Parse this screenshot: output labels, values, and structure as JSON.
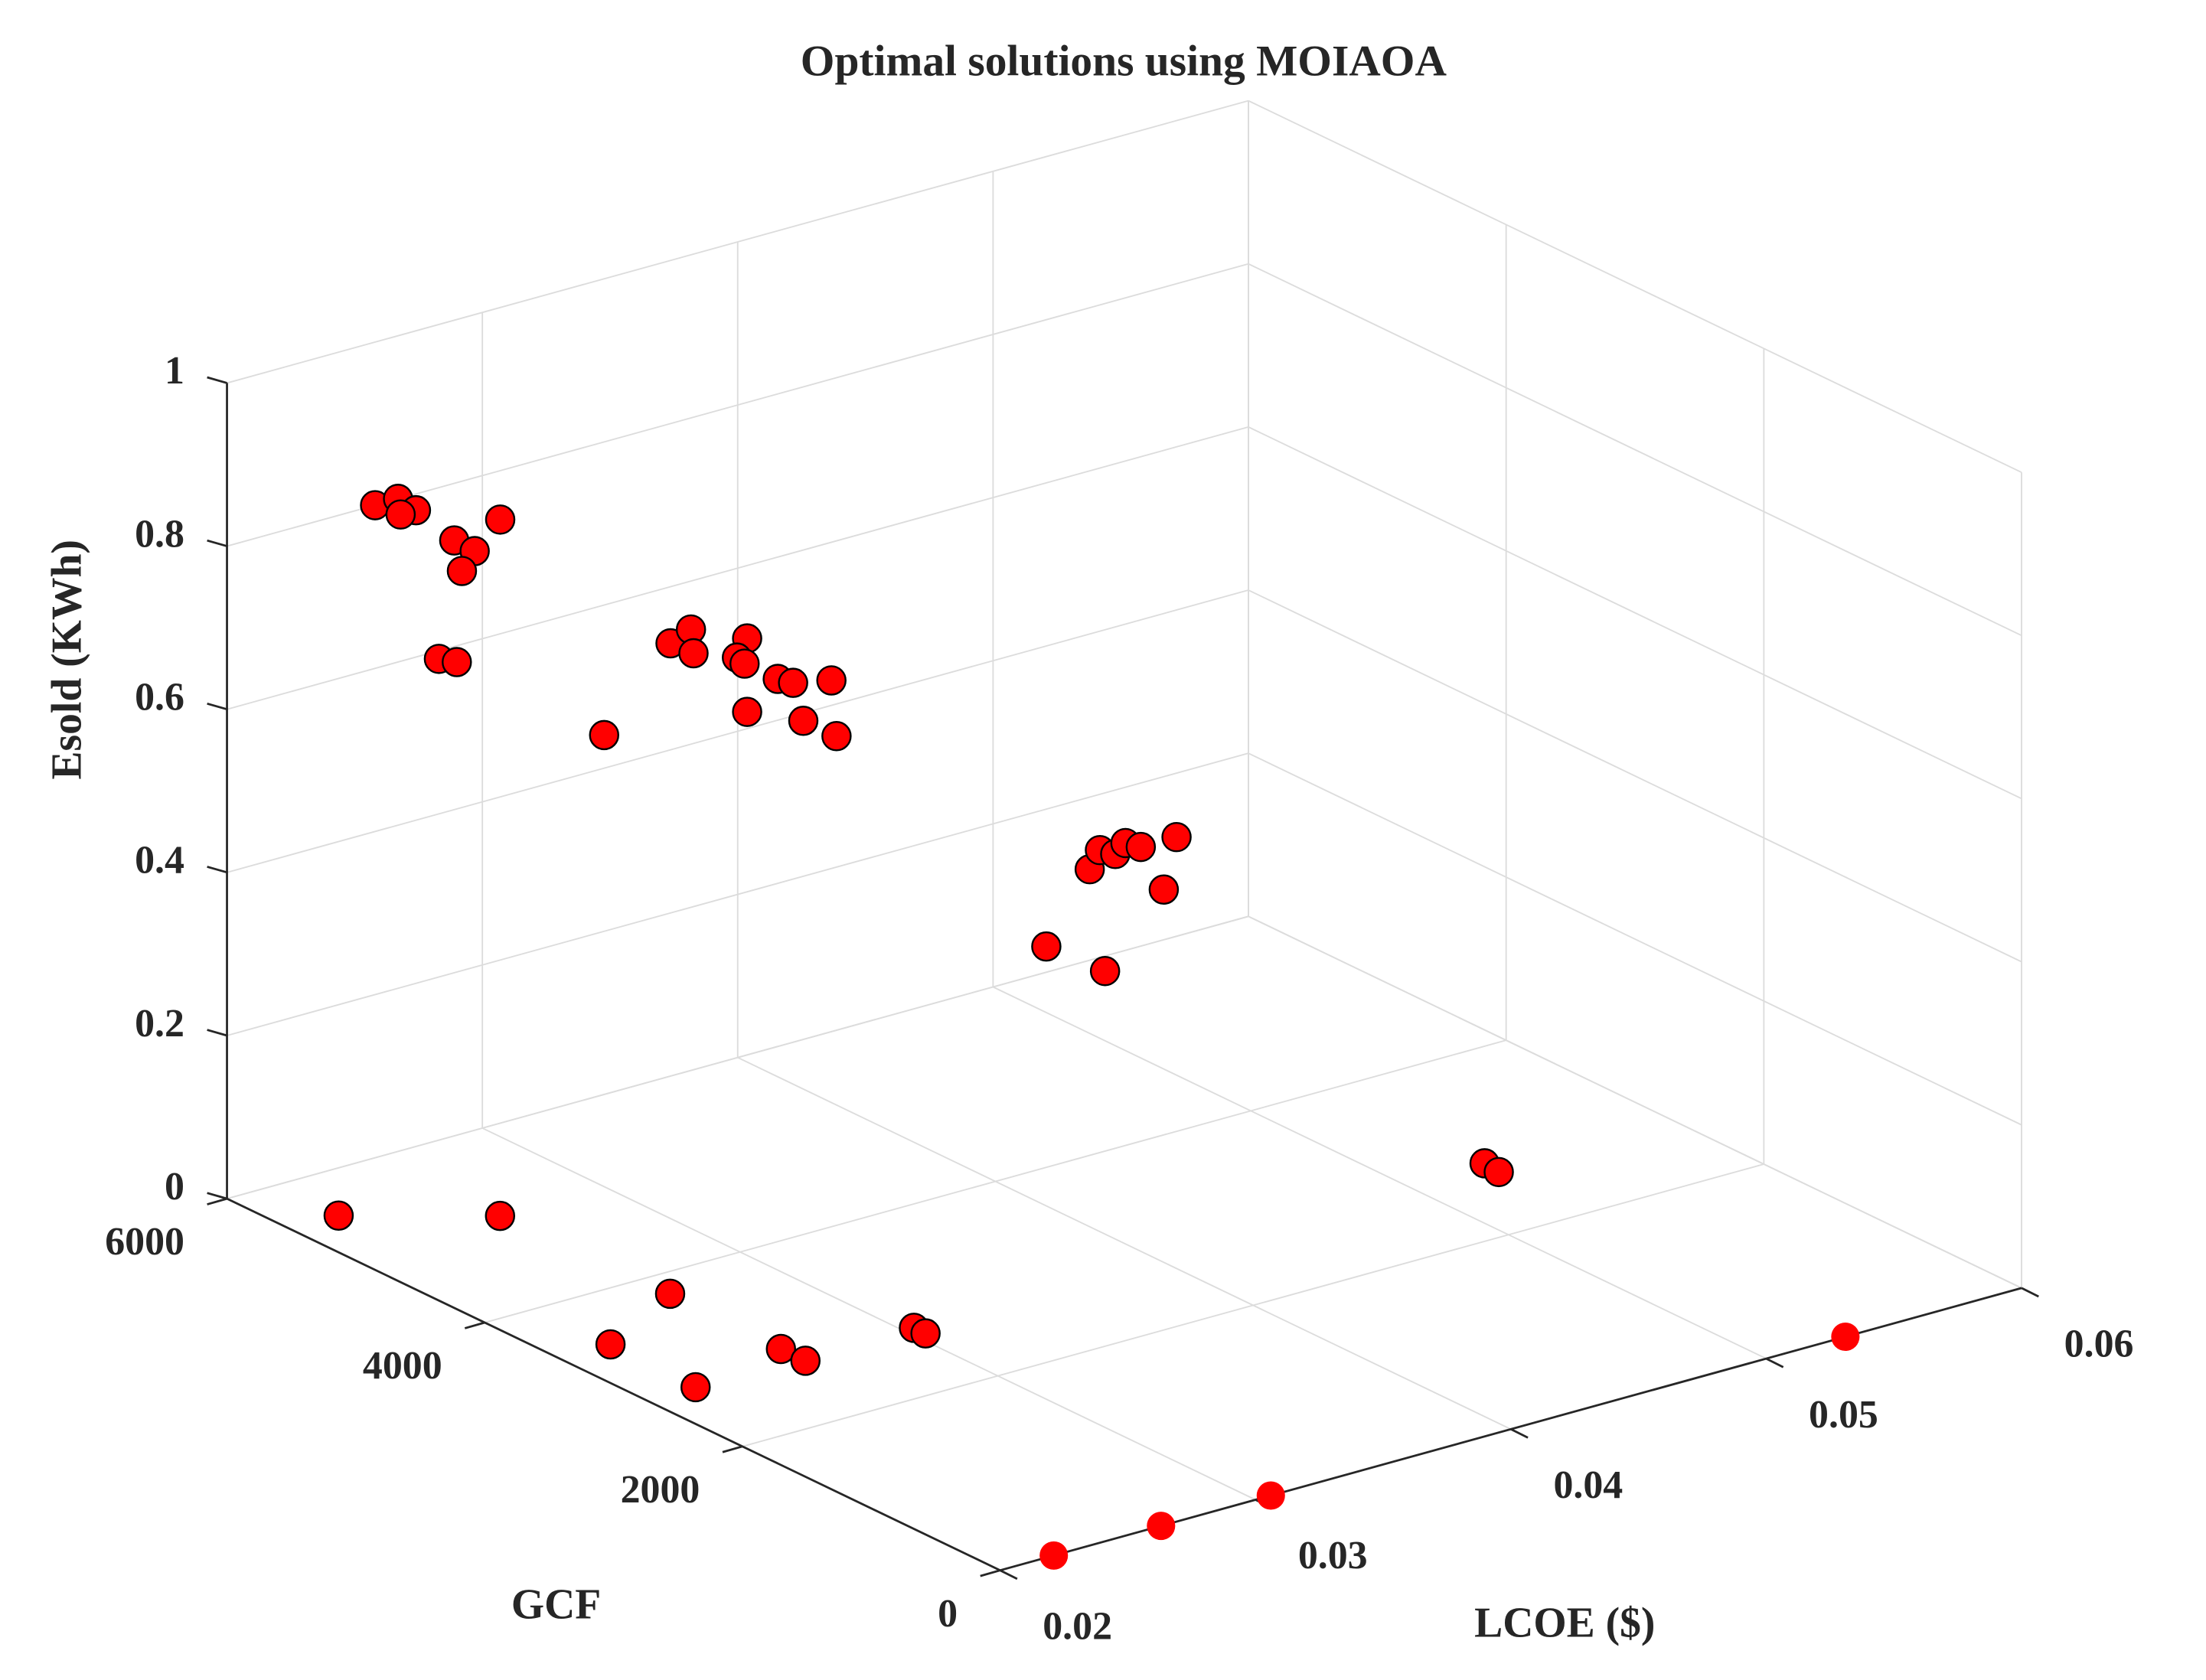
{
  "chart_data": {
    "type": "scatter3d",
    "title": "Optimal solutions using MOIAOA",
    "xlabel": "LCOE ($)",
    "ylabel": "GCF",
    "zlabel": "Esold (KWh)",
    "xlim": [
      0.02,
      0.06
    ],
    "xticks": [
      0.02,
      0.03,
      0.04,
      0.05,
      0.06
    ],
    "ylim": [
      0,
      6000
    ],
    "yticks": [
      0,
      2000,
      4000,
      6000
    ],
    "zlim": [
      0,
      1
    ],
    "zticks": [
      0,
      0.2,
      0.4,
      0.6,
      0.8,
      1
    ],
    "grid": true,
    "series": [
      {
        "color": "#ff0000",
        "edgecolor": "#000000",
        "x": [
          0.0258,
          0.0267,
          0.0274,
          0.0268,
          0.0289,
          0.0297,
          0.0292,
          0.0307,
          0.0283,
          0.029,
          0.0272,
          0.0298,
          0.0306,
          0.0307,
          0.0328,
          0.0324,
          0.0327,
          0.0328,
          0.034,
          0.0346,
          0.035,
          0.0361,
          0.0363,
          0.0319,
          0.0336,
          0.034,
          0.0346,
          0.035,
          0.0356,
          0.037,
          0.0365,
          0.0342,
          0.0219,
          0.0259,
          0.0261,
          0.022,
          0.0219,
          0.026,
          0.026,
          0.0304,
          0.0304,
          0.0531,
          0.053
        ],
        "y": [
          6000,
          6000,
          6000,
          6000,
          6000,
          6000,
          6000,
          6000,
          6000,
          6000,
          4500,
          4500,
          4500,
          4500,
          4500,
          4500,
          4500,
          4500,
          4500,
          4500,
          4500,
          4500,
          4500,
          2000,
          2000,
          2000,
          2000,
          2000,
          2000,
          2000,
          2000,
          2000,
          5510,
          5050,
          3770,
          3420,
          2740,
          2890,
          2700,
          2730,
          2640,
          2800,
          2670
        ],
        "z": [
          0.8,
          0.8,
          0.78,
          0.78,
          0.73,
          0.71,
          0.69,
          0.74,
          0.59,
          0.58,
          0.62,
          0.71,
          0.72,
          0.69,
          0.69,
          0.67,
          0.66,
          0.6,
          0.63,
          0.62,
          0.57,
          0.61,
          0.54,
          0.51,
          0.59,
          0.61,
          0.6,
          0.61,
          0.6,
          0.6,
          0.54,
          0.46,
          0,
          0,
          0,
          0,
          0,
          0,
          0,
          0,
          0,
          0,
          0
        ]
      },
      {
        "color": "#ff0000",
        "edgecolor": "none",
        "x": [
          0.0221,
          0.0263,
          0.0306,
          0.0531
        ],
        "y": [
          0,
          0,
          0,
          0
        ],
        "z": [
          0,
          0,
          0,
          0
        ]
      }
    ]
  }
}
